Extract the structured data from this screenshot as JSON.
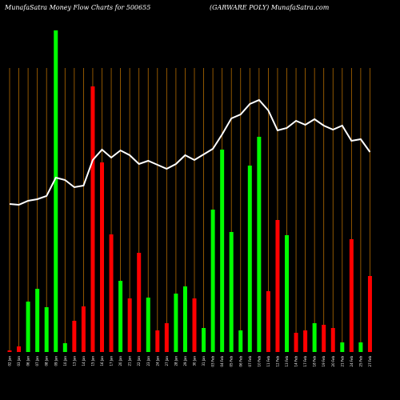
{
  "chart_data": {
    "type": "bar-line",
    "title": "MunafaSatra  Money Flow  Charts for 500655",
    "subtitle": "(GARWARE POLY) MunafaSatra.com",
    "categories": [
      "02 Jan",
      "03 Jan",
      "06 Jan",
      "07 Jan",
      "08 Jan",
      "09 Jan",
      "10 Jan",
      "13 Jan",
      "14 Jan",
      "15 Jan",
      "16 Jan",
      "17 Jan",
      "20 Jan",
      "21 Jan",
      "22 Jan",
      "23 Jan",
      "24 Jan",
      "27 Jan",
      "28 Jan",
      "29 Jan",
      "30 Jan",
      "31 Jan",
      "03 Feb",
      "04 Feb",
      "05 Feb",
      "06 Feb",
      "07 Feb",
      "10 Feb",
      "11 Feb",
      "12 Feb",
      "13 Feb",
      "14 Feb",
      "17 Feb",
      "18 Feb",
      "19 Feb",
      "20 Feb",
      "21 Feb",
      "24 Feb",
      "25 Feb",
      "27 Feb"
    ],
    "bar_colors": [
      "#ff0000",
      "#ff0000",
      "#00ff00",
      "#00ff00",
      "#00ff00",
      "#00ff00",
      "#00ff00",
      "#ff0000",
      "#ff0000",
      "#ff0000",
      "#ff0000",
      "#ff0000",
      "#00ff00",
      "#ff0000",
      "#ff0000",
      "#00ff00",
      "#ff0000",
      "#ff0000",
      "#00ff00",
      "#00ff00",
      "#ff0000",
      "#00ff00",
      "#00ff00",
      "#00ff00",
      "#00ff00",
      "#00ff00",
      "#00ff00",
      "#00ff00",
      "#ff0000",
      "#ff0000",
      "#00ff00",
      "#ff0000",
      "#ff0000",
      "#00ff00",
      "#ff0000",
      "#ff0000",
      "#00ff00",
      "#ff0000",
      "#00ff00",
      "#ff0000"
    ],
    "values": [
      2,
      7,
      63,
      79,
      56,
      402,
      11,
      39,
      57,
      332,
      237,
      147,
      89,
      67,
      124,
      68,
      27,
      36,
      73,
      82,
      67,
      30,
      178,
      253,
      150,
      27,
      233,
      269,
      76,
      165,
      146,
      24,
      27,
      36,
      34,
      30,
      12,
      141,
      12,
      95
    ],
    "line": {
      "color": "#ffffff",
      "values": [
        185,
        184,
        189,
        191,
        195,
        218,
        215,
        206,
        208,
        240,
        253,
        243,
        252,
        246,
        235,
        239,
        234,
        229,
        235,
        246,
        240,
        247,
        254,
        272,
        292,
        297,
        310,
        315,
        302,
        277,
        280,
        289,
        284,
        291,
        283,
        278,
        283,
        264,
        266,
        250
      ]
    },
    "ylim": [
      0,
      405
    ],
    "grid_color": "#b36b00"
  }
}
